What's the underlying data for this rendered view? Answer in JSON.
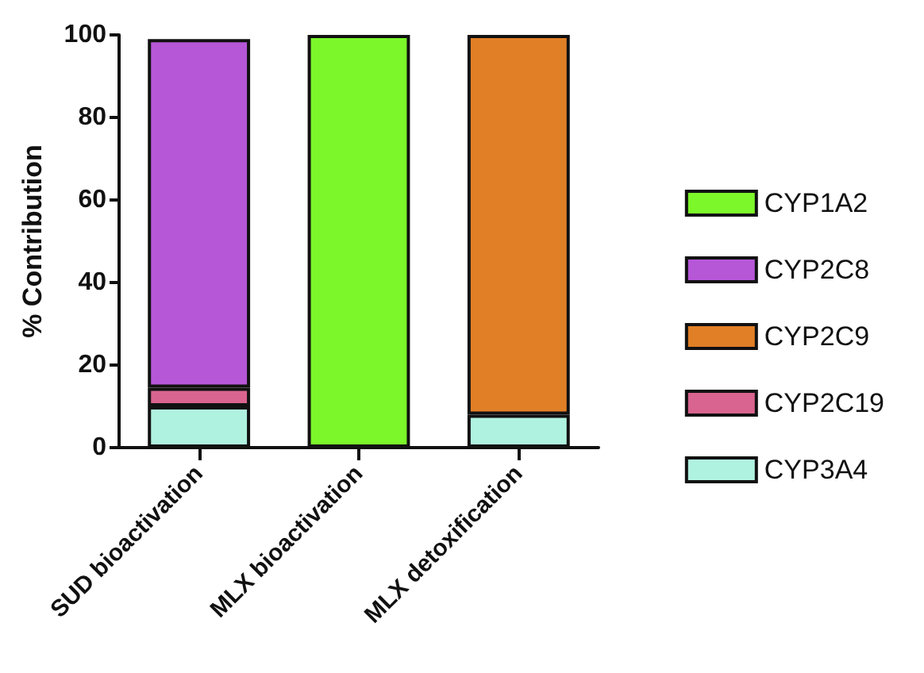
{
  "chart_data": {
    "type": "bar",
    "stacked": true,
    "ylabel": "% Contribution",
    "categories": [
      "SUD bioactivation",
      "MLX bioactivation",
      "MLX detoxification"
    ],
    "series": [
      {
        "name": "CYP3A4",
        "color": "#b0f2e0",
        "values": [
          10,
          null,
          8
        ]
      },
      {
        "name": "CYP2C19",
        "color": "#d96490",
        "values": [
          4.5,
          null,
          null
        ]
      },
      {
        "name": "CYP2C9",
        "color": "#e07f26",
        "values": [
          null,
          null,
          92
        ]
      },
      {
        "name": "CYP2C8",
        "color": "#b657d8",
        "values": [
          84.5,
          null,
          null
        ]
      },
      {
        "name": "CYP1A2",
        "color": "#7cf72a",
        "values": [
          null,
          100,
          null
        ]
      }
    ],
    "ylim": [
      0,
      100
    ],
    "yticks": [
      0,
      20,
      40,
      60,
      80,
      100
    ],
    "grid": false,
    "legend": "right"
  }
}
